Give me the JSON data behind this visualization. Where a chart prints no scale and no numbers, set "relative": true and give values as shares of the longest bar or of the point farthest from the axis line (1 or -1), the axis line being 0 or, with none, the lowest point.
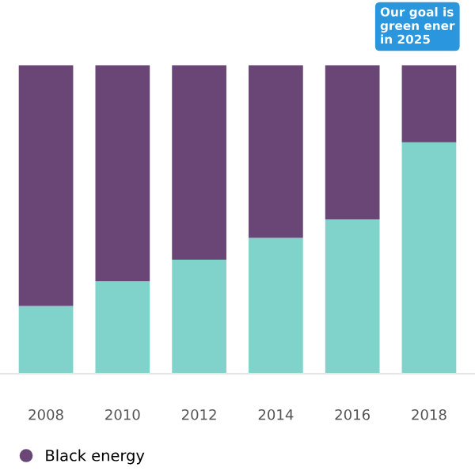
{
  "chart_data": {
    "type": "bar",
    "stacked": true,
    "relative": true,
    "categories": [
      "2008",
      "2010",
      "2012",
      "2014",
      "2016",
      "2018"
    ],
    "series": [
      {
        "color": "#7fd3cb",
        "values": [
          0.22,
          0.3,
          0.37,
          0.44,
          0.5,
          0.75
        ]
      },
      {
        "name": "Black energy",
        "color": "#6a4677",
        "values": [
          0.78,
          0.7,
          0.63,
          0.56,
          0.5,
          0.25
        ]
      }
    ],
    "annotations": [
      "Our goal is\ngreen ener\nin 2025"
    ],
    "legend": "bottom left",
    "grid": false
  }
}
